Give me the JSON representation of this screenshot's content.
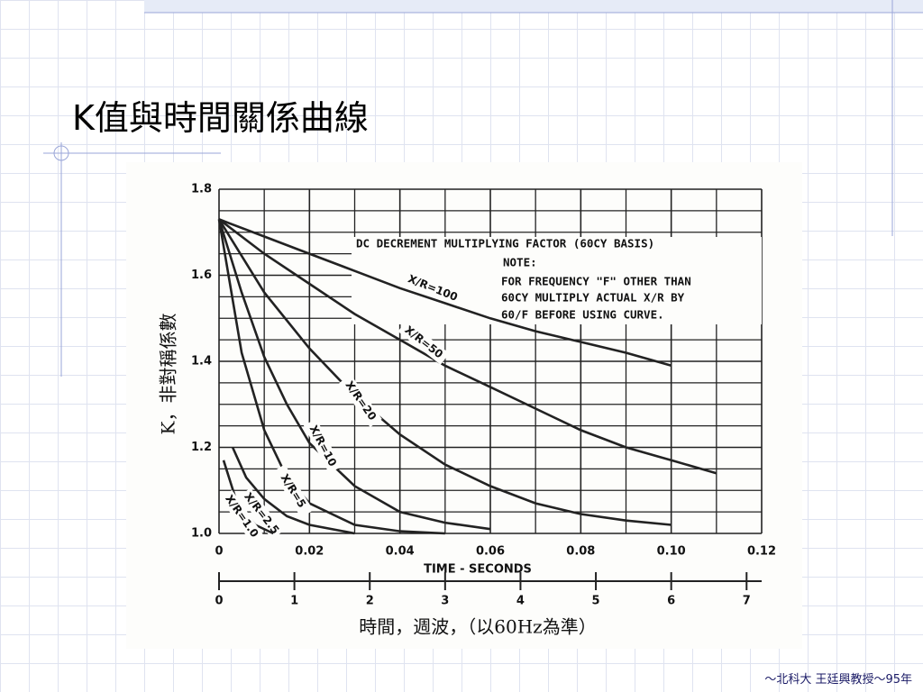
{
  "slide": {
    "title": "K值與時間關係曲線",
    "footer": "～北科大 王廷興教授～95年"
  },
  "chart_data": {
    "type": "line",
    "ylabel": "K，非對稱係數",
    "xlabel": "TIME - SECONDS",
    "x2label": "時間，週波，（以60Hz為準）",
    "annotations": [
      "DC DECREMENT MULTIPLYING FACTOR (60CY BASIS)",
      "NOTE:",
      "FOR FREQUENCY \"F\" OTHER THAN",
      "60CY MULTIPLY ACTUAL X/R BY",
      "60/F BEFORE USING CURVE."
    ],
    "xlim": [
      0,
      0.12
    ],
    "xticks": [
      0,
      0.02,
      0.04,
      0.06,
      0.08,
      {
        "value": 0.1,
        "label": "0.10"
      },
      0.12
    ],
    "ylim": [
      1.0,
      1.8
    ],
    "yticks": [
      {
        "value": 1.0,
        "label": "1.0"
      },
      1.2,
      1.4,
      1.6,
      1.8
    ],
    "x2lim": [
      0,
      7.2
    ],
    "x2ticks": [
      0,
      1,
      2,
      3,
      4,
      5,
      6,
      7
    ],
    "grid": true,
    "series": [
      {
        "name": "X/R=100",
        "color": "#222",
        "x": [
          0,
          0.01,
          0.02,
          0.03,
          0.04,
          0.05,
          0.06,
          0.07,
          0.08,
          0.09,
          0.1
        ],
        "values": [
          1.73,
          1.69,
          1.65,
          1.61,
          1.57,
          1.535,
          1.5,
          1.47,
          1.445,
          1.42,
          1.39
        ]
      },
      {
        "name": "X/R=50",
        "color": "#222",
        "x": [
          0,
          0.01,
          0.02,
          0.03,
          0.04,
          0.05,
          0.06,
          0.07,
          0.08,
          0.09,
          0.1,
          0.11
        ],
        "values": [
          1.73,
          1.65,
          1.58,
          1.51,
          1.45,
          1.39,
          1.34,
          1.29,
          1.24,
          1.2,
          1.17,
          1.14
        ]
      },
      {
        "name": "X/R=20",
        "color": "#222",
        "x": [
          0,
          0.01,
          0.02,
          0.03,
          0.04,
          0.05,
          0.06,
          0.07,
          0.08,
          0.09,
          0.1
        ],
        "values": [
          1.73,
          1.56,
          1.43,
          1.32,
          1.23,
          1.16,
          1.11,
          1.07,
          1.045,
          1.03,
          1.02
        ]
      },
      {
        "name": "X/R=10",
        "color": "#222",
        "x": [
          0,
          0.005,
          0.01,
          0.015,
          0.02,
          0.03,
          0.04,
          0.05,
          0.06
        ],
        "values": [
          1.73,
          1.56,
          1.41,
          1.3,
          1.21,
          1.11,
          1.05,
          1.025,
          1.01
        ]
      },
      {
        "name": "X/R=5",
        "color": "#222",
        "x": [
          0,
          0.005,
          0.01,
          0.015,
          0.02,
          0.03,
          0.04,
          0.05
        ],
        "values": [
          1.73,
          1.42,
          1.24,
          1.13,
          1.07,
          1.02,
          1.005,
          1.0
        ]
      },
      {
        "name": "X/R=2.5",
        "color": "#222",
        "x": [
          0.003,
          0.006,
          0.01,
          0.015,
          0.02,
          0.03
        ],
        "values": [
          1.2,
          1.13,
          1.08,
          1.04,
          1.02,
          1.0
        ]
      },
      {
        "name": "X/R=1.0",
        "color": "#222",
        "x": [
          0.001,
          0.004,
          0.008,
          0.012
        ],
        "values": [
          1.17,
          1.07,
          1.02,
          1.0
        ]
      }
    ]
  }
}
